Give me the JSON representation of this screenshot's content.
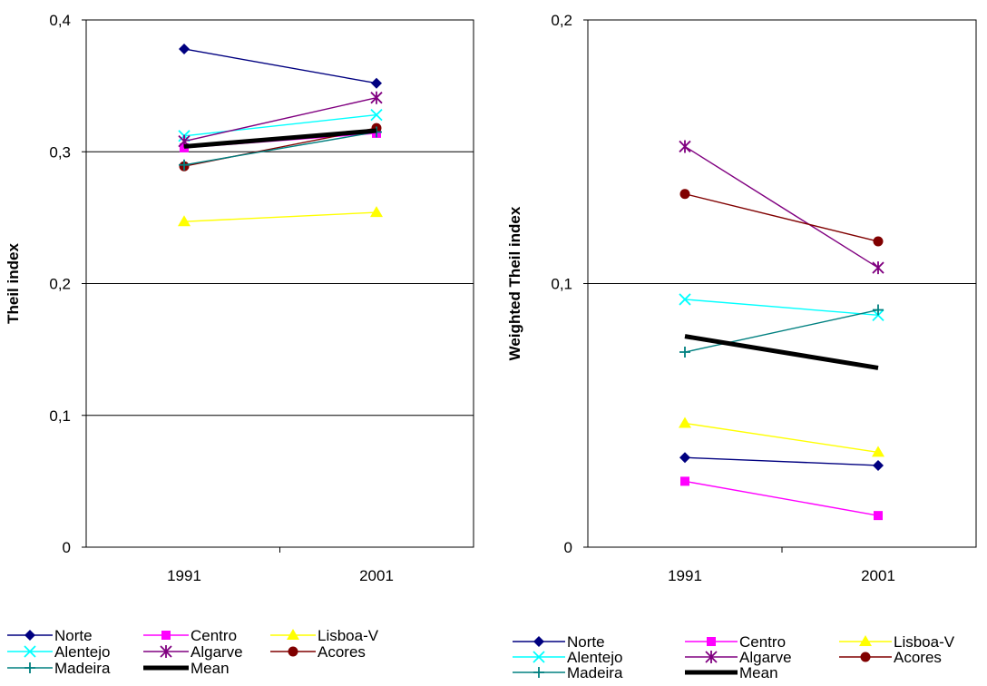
{
  "chart_data": [
    {
      "type": "line",
      "title": "",
      "xlabel": "",
      "ylabel": "Theil index",
      "categories": [
        "1991",
        "2001"
      ],
      "ylim": [
        0,
        0.4
      ],
      "yticks": [
        "0",
        "0,1",
        "0,2",
        "0,3",
        "0,4"
      ],
      "grid": true,
      "legend": "bottom",
      "series": [
        {
          "name": "Norte",
          "values": [
            0.378,
            0.352
          ],
          "color": "#000080",
          "marker": "diamond"
        },
        {
          "name": "Centro",
          "values": [
            0.303,
            0.314
          ],
          "color": "#ff00ff",
          "marker": "square"
        },
        {
          "name": "Lisboa-V",
          "values": [
            0.247,
            0.254
          ],
          "color": "#ffff00",
          "marker": "triangle"
        },
        {
          "name": "Alentejo",
          "values": [
            0.312,
            0.328
          ],
          "color": "#00ffff",
          "marker": "x"
        },
        {
          "name": "Algarve",
          "values": [
            0.308,
            0.341
          ],
          "color": "#800080",
          "marker": "star"
        },
        {
          "name": "Acores",
          "values": [
            0.289,
            0.318
          ],
          "color": "#800000",
          "marker": "circle"
        },
        {
          "name": "Madeira",
          "values": [
            0.29,
            0.315
          ],
          "color": "#008080",
          "marker": "plus"
        },
        {
          "name": "Mean",
          "values": [
            0.304,
            0.316
          ],
          "color": "#000000",
          "marker": "none",
          "width": 5
        }
      ]
    },
    {
      "type": "line",
      "title": "",
      "xlabel": "",
      "ylabel": "Weighted Theil index",
      "categories": [
        "1991",
        "2001"
      ],
      "ylim": [
        0,
        0.2
      ],
      "yticks": [
        "0",
        "0,1",
        "0,2"
      ],
      "grid": true,
      "legend": "bottom",
      "series": [
        {
          "name": "Norte",
          "values": [
            0.034,
            0.031
          ],
          "color": "#000080",
          "marker": "diamond"
        },
        {
          "name": "Centro",
          "values": [
            0.025,
            0.012
          ],
          "color": "#ff00ff",
          "marker": "square"
        },
        {
          "name": "Lisboa-V",
          "values": [
            0.047,
            0.036
          ],
          "color": "#ffff00",
          "marker": "triangle"
        },
        {
          "name": "Alentejo",
          "values": [
            0.094,
            0.088
          ],
          "color": "#00ffff",
          "marker": "x"
        },
        {
          "name": "Algarve",
          "values": [
            0.152,
            0.106
          ],
          "color": "#800080",
          "marker": "star"
        },
        {
          "name": "Acores",
          "values": [
            0.134,
            0.116
          ],
          "color": "#800000",
          "marker": "circle"
        },
        {
          "name": "Madeira",
          "values": [
            0.074,
            0.09
          ],
          "color": "#008080",
          "marker": "plus"
        },
        {
          "name": "Mean",
          "values": [
            0.08,
            0.068
          ],
          "color": "#000000",
          "marker": "none",
          "width": 5
        }
      ]
    }
  ]
}
